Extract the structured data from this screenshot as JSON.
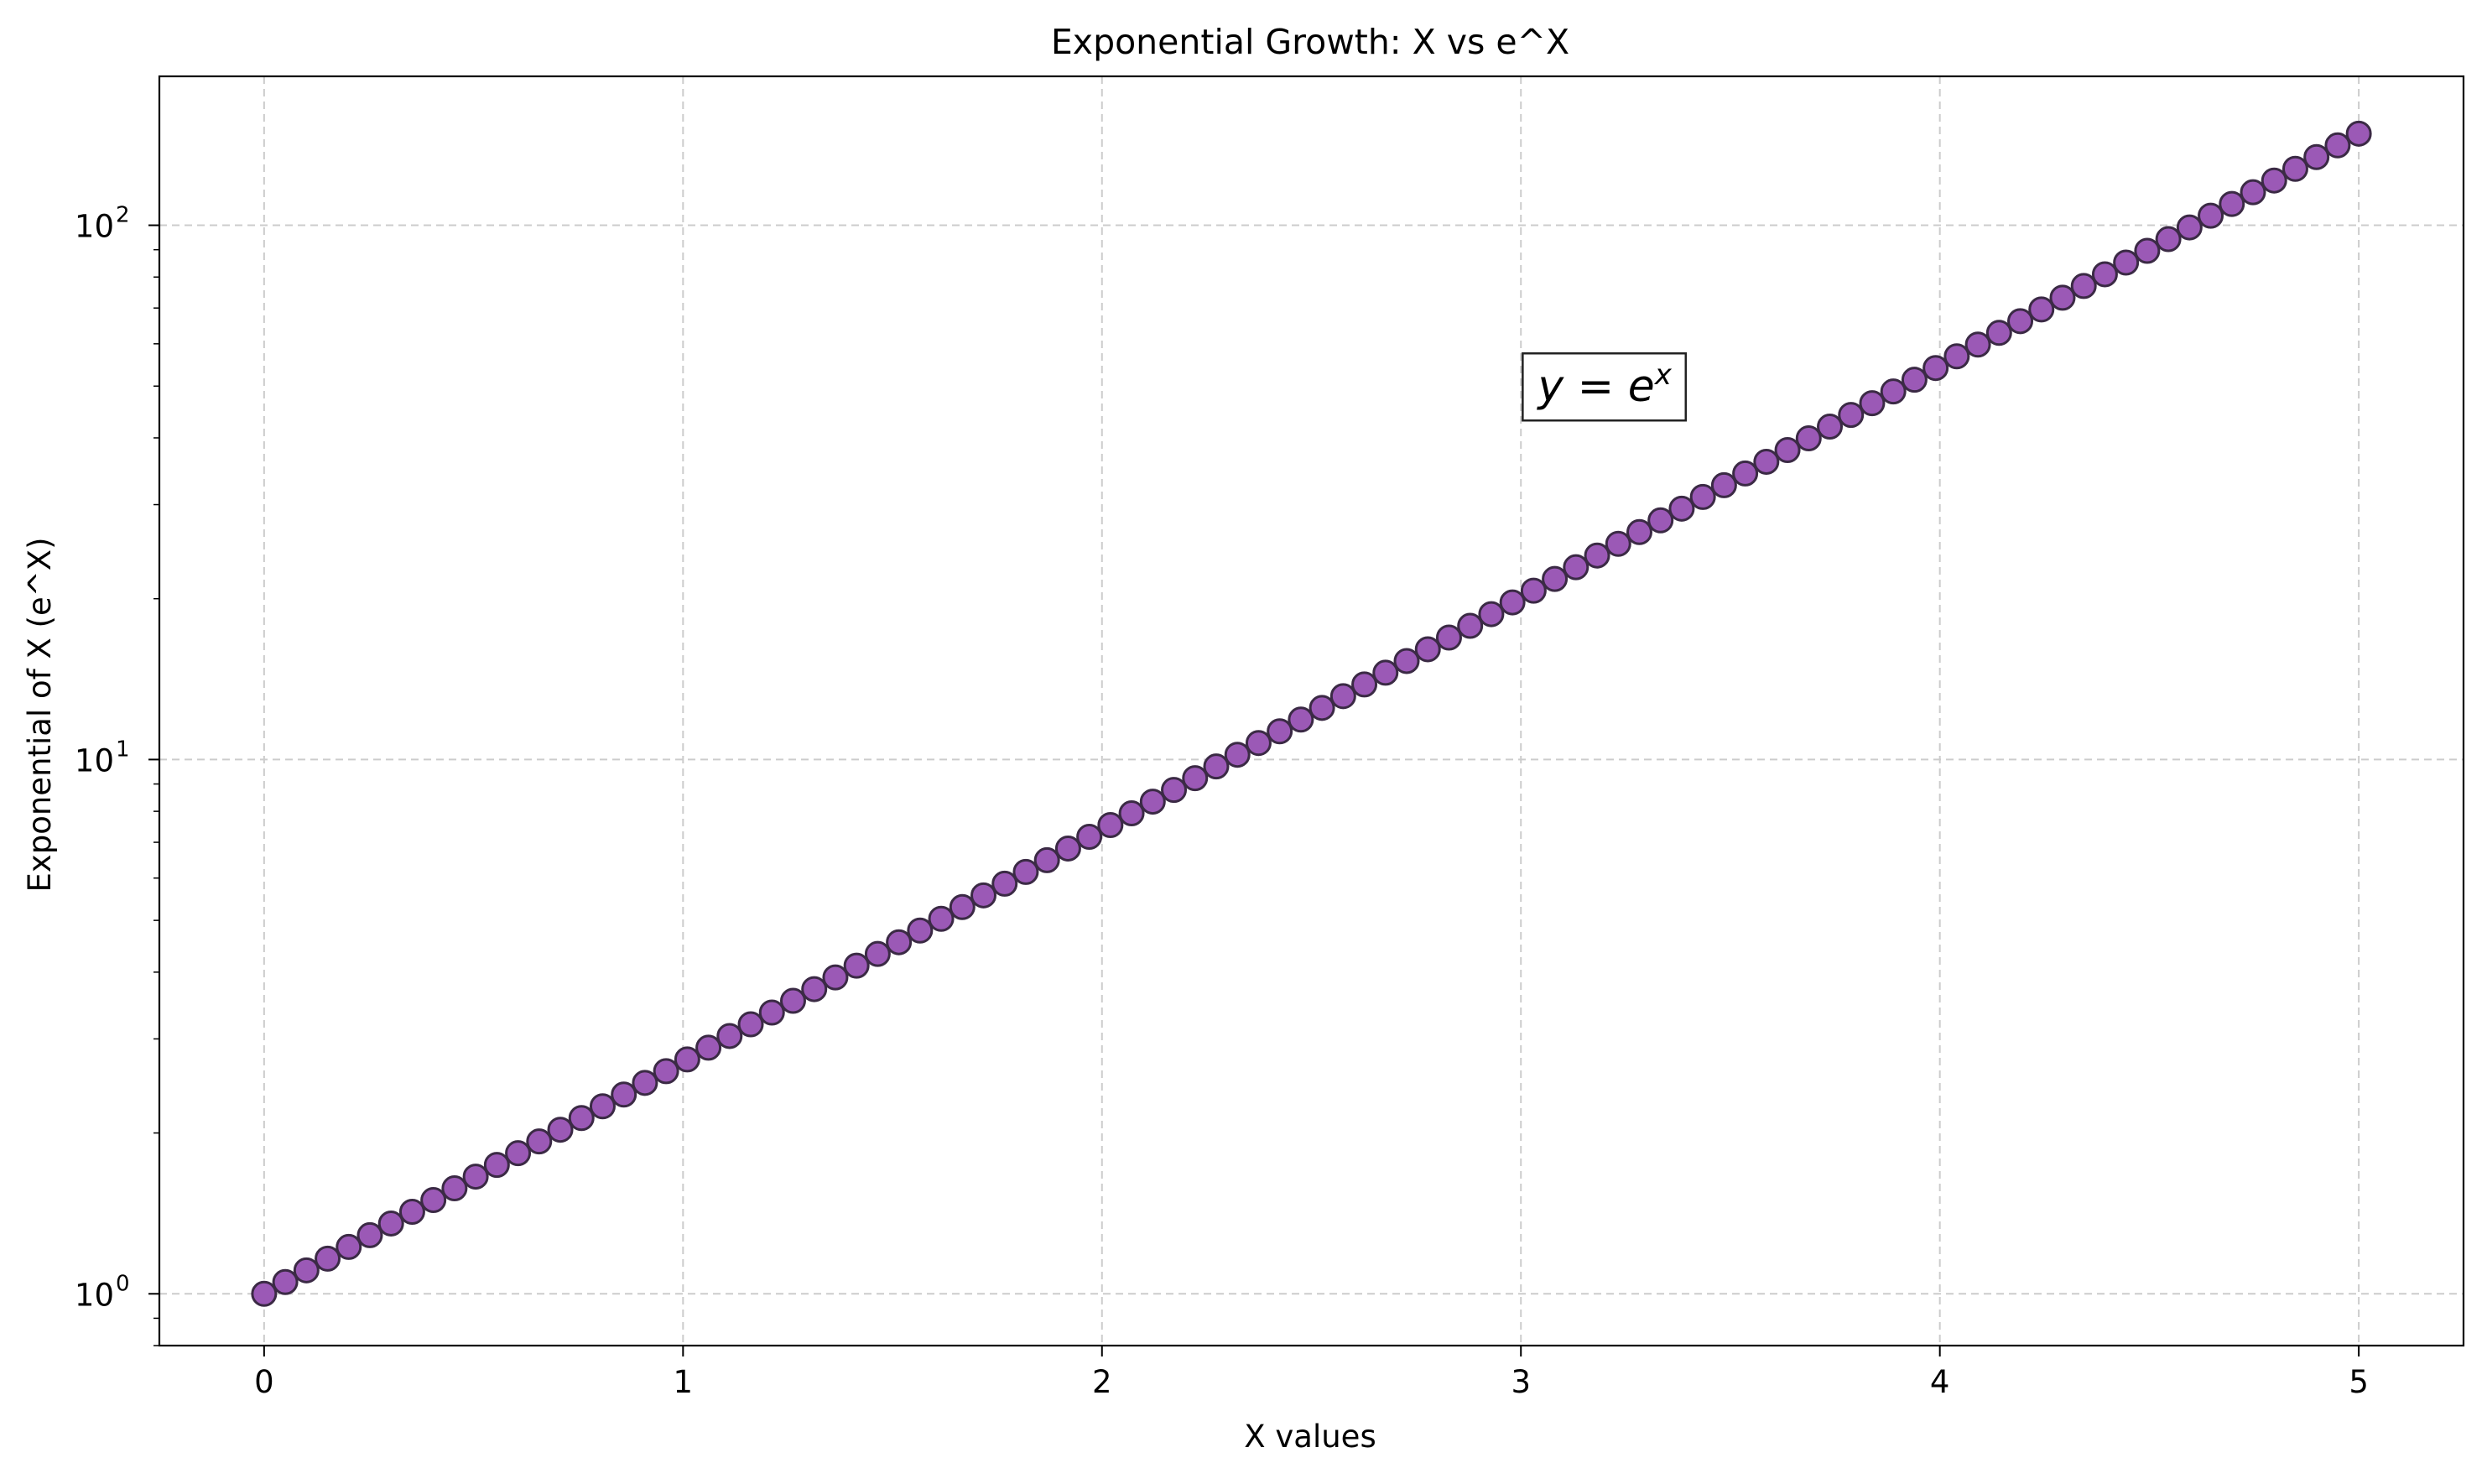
{
  "chart_data": {
    "type": "scatter",
    "title": "Exponential Growth: X vs e^X",
    "xlabel": "X values",
    "ylabel": "Exponential of X (e^X)",
    "xlim": [
      -0.25,
      5.25
    ],
    "ylim": [
      0.8,
      190
    ],
    "yscale": "log",
    "grid": true,
    "legend": "none",
    "marker_color": "#9b59b6",
    "marker_edge_color": "#3b2a45",
    "grid_color": "#cccccc",
    "x_ticks": [
      {
        "value": 0,
        "label": "0"
      },
      {
        "value": 1,
        "label": "1"
      },
      {
        "value": 2,
        "label": "2"
      },
      {
        "value": 3,
        "label": "3"
      },
      {
        "value": 4,
        "label": "4"
      },
      {
        "value": 5,
        "label": "5"
      }
    ],
    "y_ticks": [
      {
        "value": 1,
        "base": "10",
        "exp": "0"
      },
      {
        "value": 10,
        "base": "10",
        "exp": "1"
      },
      {
        "value": 100,
        "base": "10",
        "exp": "2"
      }
    ],
    "annotation": {
      "text": "y = e",
      "sup": "x",
      "x": 3.2,
      "y": 50
    },
    "series": [
      {
        "x_start": 0,
        "x_end": 5,
        "count": 100,
        "function": "exp"
      }
    ]
  }
}
